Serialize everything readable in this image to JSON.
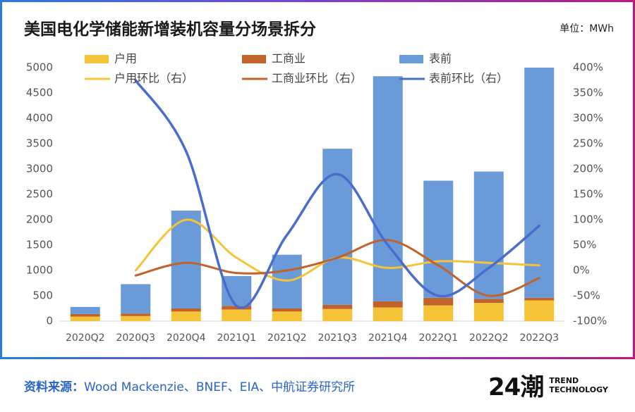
{
  "header": {
    "title": "美国电化学储能新增装机容量分场景拆分",
    "unit": "单位：MWh"
  },
  "footer": {
    "source_label": "资料来源：",
    "source_text": "Wood Mackenzie、BNEF、EIA、中航证券研究所",
    "brand_logo": "24潮",
    "brand_line1": "TREND",
    "brand_line2": "TECHNOLOGY"
  },
  "colors": {
    "household": "#f5c338",
    "commercial": "#c0622a",
    "fom": "#6a9bd8",
    "household_line": "#f5c338",
    "commercial_line": "#c0622a",
    "fom_line": "#4a6ccf"
  },
  "chart_data": {
    "type": "bar",
    "stacked": true,
    "categories": [
      "2020Q2",
      "2020Q3",
      "2020Q4",
      "2021Q1",
      "2021Q2",
      "2021Q3",
      "2021Q4",
      "2022Q1",
      "2022Q2",
      "2022Q3"
    ],
    "ylim": [
      0,
      5000
    ],
    "yticks": [
      "0",
      "500",
      "1000",
      "1500",
      "2000",
      "2500",
      "3000",
      "3500",
      "4000",
      "4500",
      "5000"
    ],
    "y2lim": [
      -100,
      400
    ],
    "y2ticks": [
      "-100%",
      "-50%",
      "0%",
      "50%",
      "100%",
      "150%",
      "200%",
      "250%",
      "300%",
      "350%",
      "400%"
    ],
    "legend": [
      "户用",
      "工商业",
      "表前",
      "户用环比（右）",
      "工商业环比（右）",
      "表前环比（右）"
    ],
    "series": [
      {
        "name": "户用",
        "axis": "left",
        "kind": "bar",
        "values": [
          90,
          100,
          190,
          230,
          190,
          240,
          270,
          310,
          360,
          410
        ]
      },
      {
        "name": "工商业",
        "axis": "left",
        "kind": "bar",
        "values": [
          50,
          50,
          60,
          70,
          60,
          80,
          120,
          150,
          80,
          50
        ]
      },
      {
        "name": "表前",
        "axis": "left",
        "kind": "bar",
        "values": [
          140,
          580,
          1930,
          590,
          1060,
          3080,
          4440,
          2310,
          2510,
          4540
        ]
      },
      {
        "name": "户用环比（右）",
        "axis": "right",
        "kind": "line",
        "values": [
          null,
          0,
          100,
          25,
          -20,
          25,
          5,
          18,
          15,
          10
        ]
      },
      {
        "name": "工商业环比（右）",
        "axis": "right",
        "kind": "line",
        "values": [
          null,
          -10,
          15,
          -5,
          0,
          25,
          60,
          10,
          -50,
          -15
        ]
      },
      {
        "name": "表前环比（右）",
        "axis": "right",
        "kind": "line",
        "values": [
          null,
          375,
          235,
          -70,
          70,
          190,
          50,
          -50,
          5,
          88
        ]
      }
    ]
  }
}
